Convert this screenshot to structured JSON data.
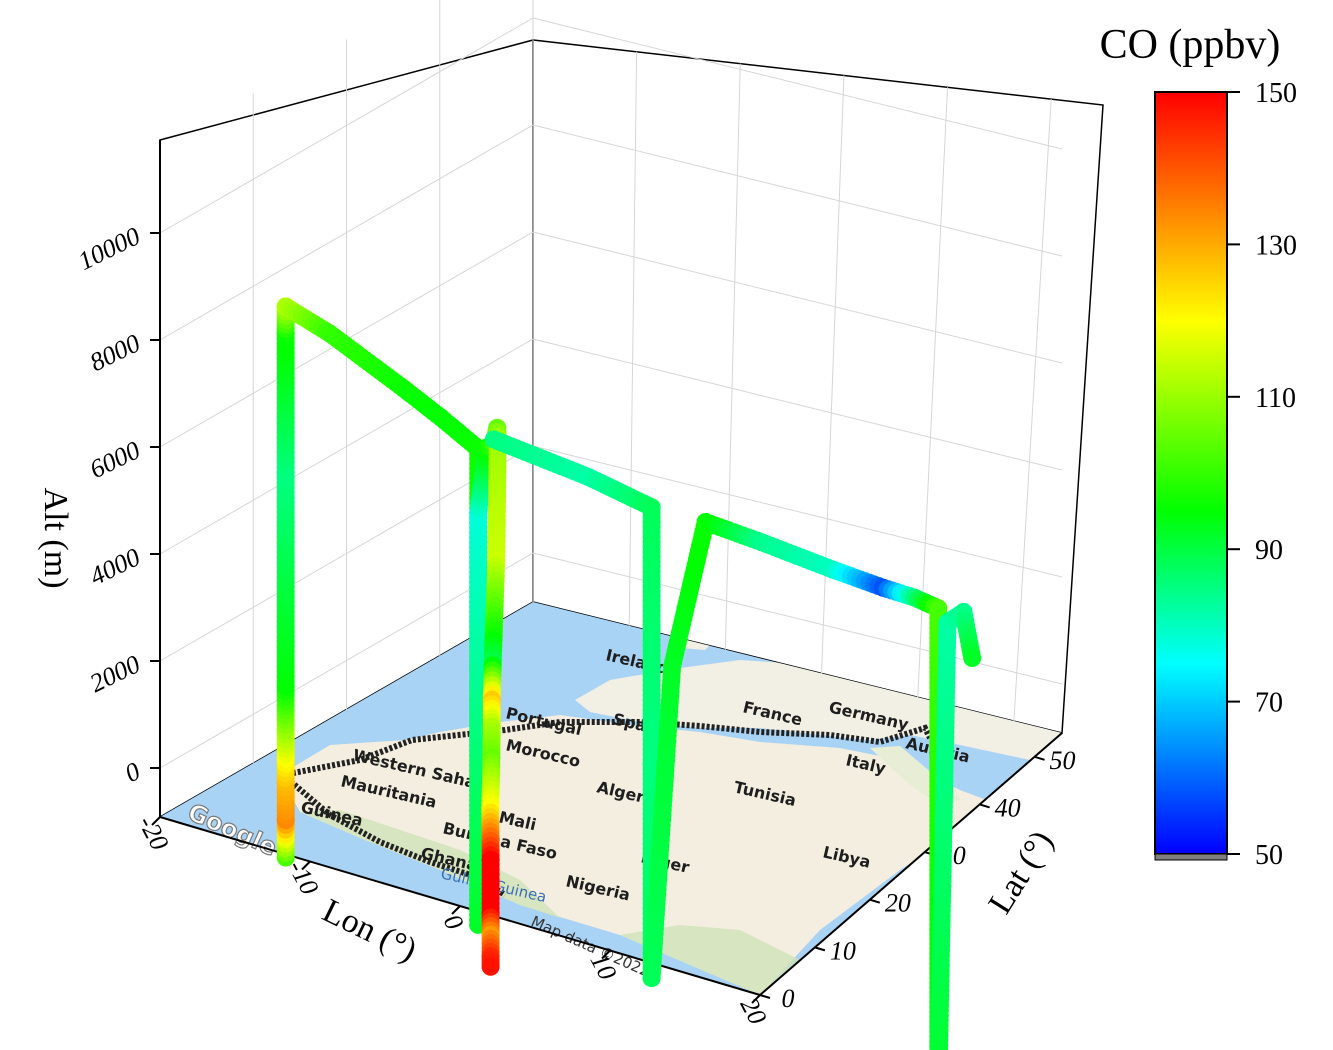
{
  "chart_data": {
    "type": "scatter",
    "subtype": "3d-trajectory",
    "xlabel": "Lon (°)",
    "ylabel": "Lat (°)",
    "zlabel": "Alt (m)",
    "xlim": [
      -20,
      20
    ],
    "ylim": [
      0,
      55
    ],
    "zlim": [
      -500,
      11500
    ],
    "x_ticks": [
      "-20",
      "-10",
      "0",
      "10",
      "20"
    ],
    "y_ticks": [
      "0",
      "10",
      "20",
      "30",
      "40",
      "50"
    ],
    "z_ticks": [
      "0",
      "2000",
      "4000",
      "6000",
      "8000",
      "10000"
    ],
    "grid": true,
    "colorbar": {
      "title": "CO (ppbv)",
      "min": 50,
      "max": 150,
      "ticks": [
        "50",
        "70",
        "90",
        "110",
        "130",
        "150"
      ],
      "colormap": "rainbow",
      "colors": [
        "#0000ff",
        "#00ffff",
        "#00ff00",
        "#ffff00",
        "#ff0000"
      ]
    },
    "basemap_labels": {
      "countries": [
        "Ireland",
        "France",
        "Germany",
        "Austria",
        "Portugal",
        "Spain",
        "Western Sahara",
        "Morocco",
        "Mauritania",
        "Algeria",
        "Tunisia",
        "Italy",
        "Mali",
        "Burkina Faso",
        "Niger",
        "Libya",
        "Guinea",
        "Ghana",
        "Nigeria"
      ],
      "water": "Gulf of Guinea",
      "logo": "Google",
      "credit": "Map data ©2022"
    },
    "series": [
      {
        "segment": "flight track (lon, lat, alt m, CO ppbv)",
        "points": [
          [
            -17.0,
            14.7,
            800,
            102
          ],
          [
            -17.0,
            14.7,
            1500,
            134
          ],
          [
            -17.0,
            14.7,
            2200,
            128
          ],
          [
            -17.0,
            14.7,
            4000,
            95
          ],
          [
            -17.0,
            14.7,
            8000,
            85
          ],
          [
            -17.0,
            14.7,
            10600,
            96
          ],
          [
            -17.0,
            14.7,
            11100,
            112
          ],
          [
            -16.0,
            20.0,
            11150,
            100
          ],
          [
            -14.0,
            28.0,
            11000,
            96
          ],
          [
            -13.0,
            32.0,
            10900,
            95
          ],
          [
            -11.6,
            35.0,
            10700,
            96
          ],
          [
            -11.6,
            35.0,
            6000,
            98
          ],
          [
            -11.6,
            35.0,
            1800,
            92
          ],
          [
            -11.6,
            35.0,
            9500,
            78
          ],
          [
            -11.2,
            35.5,
            10800,
            96
          ],
          [
            -10.2,
            34.0,
            10800,
            100
          ],
          [
            -8.5,
            30.0,
            10900,
            105
          ],
          [
            -7.0,
            26.0,
            10500,
            110
          ],
          [
            -6.0,
            23.0,
            8000,
            115
          ],
          [
            -5.5,
            21.0,
            6000,
            90
          ],
          [
            -5.2,
            20.0,
            5200,
            126
          ],
          [
            -5.2,
            20.0,
            4700,
            112
          ],
          [
            -4.5,
            18.0,
            4000,
            105
          ],
          [
            -4.2,
            17.0,
            3000,
            120
          ],
          [
            -4.0,
            16.5,
            2000,
            150
          ],
          [
            -4.0,
            16.5,
            1000,
            150
          ],
          [
            -4.0,
            16.5,
            600,
            132
          ],
          [
            -4.0,
            16.5,
            200,
            145
          ],
          [
            -4.0,
            16.5,
            0,
            148
          ],
          [
            -10.2,
            34.0,
            10900,
            85
          ],
          [
            -5.0,
            37.0,
            10900,
            82
          ],
          [
            -1.5,
            39.0,
            10800,
            88
          ],
          [
            -1.5,
            39.0,
            6000,
            85
          ],
          [
            -1.5,
            39.0,
            2000,
            88
          ],
          [
            -0.5,
            40.0,
            8000,
            92
          ],
          [
            1.0,
            42.0,
            11000,
            96
          ],
          [
            4.0,
            44.0,
            11050,
            84
          ],
          [
            8.0,
            46.0,
            11050,
            80
          ],
          [
            11.0,
            47.0,
            11050,
            58
          ],
          [
            13.0,
            47.2,
            11050,
            85
          ],
          [
            14.5,
            47.5,
            11000,
            102
          ],
          [
            14.5,
            47.5,
            5000,
            95
          ],
          [
            14.5,
            47.5,
            2000,
            92
          ],
          [
            15.0,
            47.8,
            10800,
            82
          ],
          [
            16.0,
            48.0,
            11100,
            84
          ],
          [
            16.5,
            48.2,
            10300,
            92
          ]
        ]
      }
    ]
  }
}
